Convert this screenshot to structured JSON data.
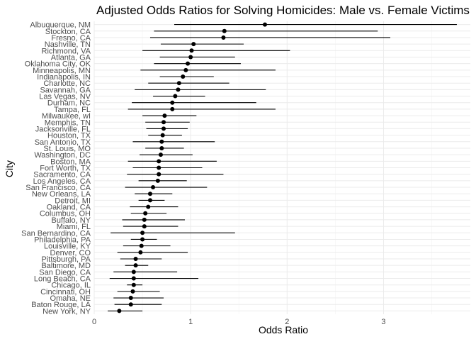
{
  "chart_data": {
    "type": "scatter",
    "title": "Adjusted Odds Ratios for Solving Homicides: Male vs. Female Victims",
    "xlabel": "Odds Ratio",
    "ylabel": "City",
    "xlim": [
      0,
      3.9
    ],
    "x_ticks": [
      0,
      1,
      2,
      3
    ],
    "grid": "on",
    "legend": "none",
    "point_color": "#000000",
    "cities": [
      {
        "city": "Albuquerque, NM",
        "or": 1.77,
        "lo": 0.83,
        "hi": 3.76
      },
      {
        "city": "Stockton, CA",
        "or": 1.35,
        "lo": 0.62,
        "hi": 2.94
      },
      {
        "city": "Fresno, CA",
        "or": 1.34,
        "lo": 0.58,
        "hi": 3.07
      },
      {
        "city": "Nashville, TN",
        "or": 1.03,
        "lo": 0.69,
        "hi": 1.55
      },
      {
        "city": "Richmond, VA",
        "or": 1.01,
        "lo": 0.5,
        "hi": 2.03
      },
      {
        "city": "Atlanta, GA",
        "or": 1.0,
        "lo": 0.68,
        "hi": 1.46
      },
      {
        "city": "Oklahoma City, OK",
        "or": 0.97,
        "lo": 0.62,
        "hi": 1.52
      },
      {
        "city": "Minneapolis, MN",
        "or": 0.95,
        "lo": 0.48,
        "hi": 1.88
      },
      {
        "city": "Indianapolis, IN",
        "or": 0.92,
        "lo": 0.68,
        "hi": 1.24
      },
      {
        "city": "Charlotte, NC",
        "or": 0.88,
        "lo": 0.56,
        "hi": 1.4
      },
      {
        "city": "Savannah, GA",
        "or": 0.87,
        "lo": 0.42,
        "hi": 1.78
      },
      {
        "city": "Las Vegas, NV",
        "or": 0.84,
        "lo": 0.61,
        "hi": 1.15
      },
      {
        "city": "Durham, NC",
        "or": 0.81,
        "lo": 0.39,
        "hi": 1.68
      },
      {
        "city": "Tampa, FL",
        "or": 0.81,
        "lo": 0.35,
        "hi": 1.88
      },
      {
        "city": "Milwaukee, wI",
        "or": 0.73,
        "lo": 0.5,
        "hi": 1.06
      },
      {
        "city": "Memphis, TN",
        "or": 0.72,
        "lo": 0.53,
        "hi": 0.99
      },
      {
        "city": "Jacksonville, FL",
        "or": 0.72,
        "lo": 0.54,
        "hi": 0.97
      },
      {
        "city": "Houston, TX",
        "or": 0.71,
        "lo": 0.56,
        "hi": 0.91
      },
      {
        "city": "San Antonio, TX",
        "or": 0.7,
        "lo": 0.4,
        "hi": 1.25
      },
      {
        "city": "St. Louis, MO",
        "or": 0.7,
        "lo": 0.53,
        "hi": 0.93
      },
      {
        "city": "Washington, DC",
        "or": 0.69,
        "lo": 0.47,
        "hi": 1.02
      },
      {
        "city": "Boston, MA",
        "or": 0.67,
        "lo": 0.35,
        "hi": 1.27
      },
      {
        "city": "Fort Worth, TX",
        "or": 0.67,
        "lo": 0.4,
        "hi": 1.12
      },
      {
        "city": "Sacramento, CA",
        "or": 0.67,
        "lo": 0.34,
        "hi": 1.34
      },
      {
        "city": "Los Angeles, CA",
        "or": 0.66,
        "lo": 0.46,
        "hi": 0.96
      },
      {
        "city": "San Francisco, CA",
        "or": 0.61,
        "lo": 0.32,
        "hi": 1.17
      },
      {
        "city": "New Orleans, LA",
        "or": 0.58,
        "lo": 0.42,
        "hi": 0.81
      },
      {
        "city": "Detroit, MI",
        "or": 0.58,
        "lo": 0.46,
        "hi": 0.73
      },
      {
        "city": "Oakland, CA",
        "or": 0.56,
        "lo": 0.37,
        "hi": 0.87
      },
      {
        "city": "Columbus, OH",
        "or": 0.53,
        "lo": 0.38,
        "hi": 0.75
      },
      {
        "city": "Buffalo, NY",
        "or": 0.52,
        "lo": 0.29,
        "hi": 0.94
      },
      {
        "city": "Miami, FL",
        "or": 0.52,
        "lo": 0.3,
        "hi": 0.87
      },
      {
        "city": "San Bernardino, CA",
        "or": 0.5,
        "lo": 0.17,
        "hi": 1.46
      },
      {
        "city": "Philadelphia, PA",
        "or": 0.5,
        "lo": 0.38,
        "hi": 0.65
      },
      {
        "city": "Louisville, KY",
        "or": 0.49,
        "lo": 0.3,
        "hi": 0.79
      },
      {
        "city": "Denver, CO",
        "or": 0.48,
        "lo": 0.24,
        "hi": 0.97
      },
      {
        "city": "Pittsburgh, PA",
        "or": 0.43,
        "lo": 0.27,
        "hi": 0.7
      },
      {
        "city": "Baltimore, MD",
        "or": 0.43,
        "lo": 0.32,
        "hi": 0.56
      },
      {
        "city": "San Diego, CA",
        "or": 0.41,
        "lo": 0.2,
        "hi": 0.86
      },
      {
        "city": "Long Beach, CA",
        "or": 0.41,
        "lo": 0.16,
        "hi": 1.08
      },
      {
        "city": "Chicago, IL",
        "or": 0.41,
        "lo": 0.34,
        "hi": 0.5
      },
      {
        "city": "Cincinnati, OH",
        "or": 0.4,
        "lo": 0.24,
        "hi": 0.68
      },
      {
        "city": "Omaha, NE",
        "or": 0.38,
        "lo": 0.2,
        "hi": 0.72
      },
      {
        "city": "Baton Rouge, LA",
        "or": 0.38,
        "lo": 0.21,
        "hi": 0.7
      },
      {
        "city": "New York, NY",
        "or": 0.26,
        "lo": 0.14,
        "hi": 0.5
      }
    ]
  }
}
